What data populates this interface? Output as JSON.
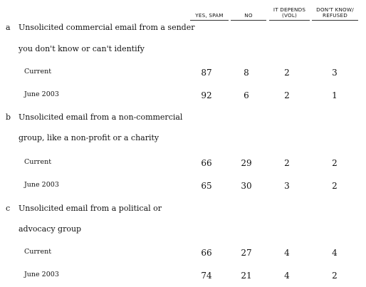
{
  "headers": {
    "yes": [
      "YES, SPAM"
    ],
    "no": [
      "NO"
    ],
    "depends": [
      "IT DEPENDS",
      "(VOL)"
    ],
    "dk": [
      "DON'T KNOW/",
      "REFUSED"
    ]
  },
  "questions": [
    {
      "letter": "a",
      "line1": "Unsolicited commercial email from a sender",
      "line2": "you don't know or can't identify",
      "rows": [
        {
          "label": "Current",
          "yes": "87",
          "no": "8",
          "depends": "2",
          "dk": "3"
        },
        {
          "label": "June 2003",
          "yes": "92",
          "no": "6",
          "depends": "2",
          "dk": "1"
        }
      ]
    },
    {
      "letter": "b",
      "line1": "Unsolicited email from a non-commercial",
      "line2": "group, like a non-profit or a charity",
      "rows": [
        {
          "label": "Current",
          "yes": "66",
          "no": "29",
          "depends": "2",
          "dk": "2"
        },
        {
          "label": "June 2003",
          "yes": "65",
          "no": "30",
          "depends": "3",
          "dk": "2"
        }
      ]
    },
    {
      "letter": "c",
      "line1": "Unsolicited email from a political or",
      "line2": "advocacy group",
      "rows": [
        {
          "label": "Current",
          "yes": "66",
          "no": "27",
          "depends": "4",
          "dk": "4"
        },
        {
          "label": "June 2003",
          "yes": "74",
          "no": "21",
          "depends": "4",
          "dk": "2"
        }
      ]
    }
  ]
}
